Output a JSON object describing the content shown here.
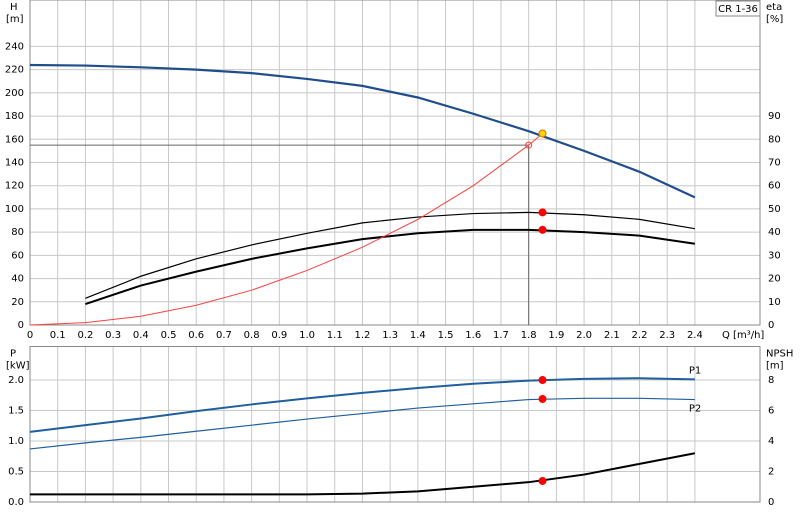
{
  "chart_data": [
    {
      "type": "line",
      "title": "CR 1-36",
      "ylabel": "H",
      "yunit": "[m]",
      "y2label": "eta",
      "y2unit": "[%]",
      "xlabel": "Q [m³/h]",
      "xlim": [
        0,
        2.635
      ],
      "ylim": [
        0,
        280
      ],
      "y2lim": [
        0,
        140
      ],
      "grid": true,
      "xticks": [
        0,
        0.1,
        0.2,
        0.3,
        0.4,
        0.5,
        0.6,
        0.7,
        0.8,
        0.9,
        {
          "value": 1,
          "label": "1.0"
        },
        1.1,
        1.2,
        1.3,
        1.4,
        1.5,
        1.6,
        1.7,
        1.8,
        1.9,
        {
          "value": 2,
          "label": "2.0"
        },
        2.1,
        2.2,
        2.3,
        2.4
      ],
      "yticks": [
        0,
        20,
        40,
        60,
        80,
        100,
        120,
        140,
        160,
        180,
        200,
        220,
        240
      ],
      "y2ticks": [
        0,
        10,
        20,
        30,
        40,
        50,
        60,
        70,
        80,
        90
      ],
      "series": [
        {
          "color": "#1f4e8c",
          "width": 2.2,
          "x": [
            0,
            0.2,
            0.4,
            0.6,
            0.8,
            1.0,
            1.2,
            1.4,
            1.6,
            1.8,
            2.0,
            2.2,
            2.4
          ],
          "values": [
            224,
            223.5,
            222,
            220,
            217,
            212,
            206,
            196,
            182,
            167,
            150,
            132,
            110
          ]
        },
        {
          "color": "#000000",
          "width": 1.2,
          "axis": "y2",
          "x": [
            0.2,
            0.4,
            0.6,
            0.8,
            1.0,
            1.2,
            1.4,
            1.6,
            1.8,
            2.0,
            2.2,
            2.4
          ],
          "values": [
            11.5,
            21,
            28.5,
            34.5,
            39.5,
            44,
            46.5,
            48,
            48.5,
            47.5,
            45.5,
            41.5
          ]
        },
        {
          "color": "#000000",
          "width": 2,
          "axis": "y2",
          "x": [
            0.2,
            0.4,
            0.6,
            0.8,
            1.0,
            1.2,
            1.4,
            1.6,
            1.8,
            2.0,
            2.2,
            2.4
          ],
          "values": [
            9,
            17,
            23,
            28.5,
            33,
            37,
            39.5,
            41,
            41,
            40,
            38.5,
            35
          ]
        },
        {
          "color": "#ff4040",
          "width": 1,
          "x": [
            0,
            0.2,
            0.4,
            0.6,
            0.8,
            1.0,
            1.2,
            1.4,
            1.6,
            1.8,
            1.85
          ],
          "values": [
            0,
            2,
            7.5,
            17,
            30,
            47,
            67,
            91,
            120,
            155,
            165
          ]
        }
      ],
      "duty_point": {
        "x": 1.8,
        "y": 155
      },
      "markers": [
        {
          "x": 1.85,
          "y": 165,
          "color": "#ffd700"
        },
        {
          "x": 1.85,
          "y": 48.5,
          "axis": "y2",
          "color": "#ff0000"
        },
        {
          "x": 1.85,
          "y": 41,
          "axis": "y2",
          "color": "#ff0000"
        }
      ]
    },
    {
      "type": "line",
      "ylabel": "P",
      "yunit": "[kW]",
      "y2label": "NPSH",
      "y2unit": "[m]",
      "xlim": [
        0,
        2.635
      ],
      "ylim": [
        0,
        2.55
      ],
      "y2lim": [
        0,
        10.2
      ],
      "grid": true,
      "yticks": [
        {
          "value": 0,
          "label": "0.0"
        },
        0.5,
        {
          "value": 1,
          "label": "1.0"
        },
        1.5,
        {
          "value": 2,
          "label": "2.0"
        }
      ],
      "y2ticks": [
        0,
        2,
        4,
        6,
        8
      ],
      "series": [
        {
          "name": "P1",
          "color": "#1f5fa0",
          "width": 2,
          "x": [
            0,
            0.2,
            0.4,
            0.6,
            0.8,
            1.0,
            1.2,
            1.4,
            1.6,
            1.8,
            2.0,
            2.2,
            2.4
          ],
          "values": [
            1.15,
            1.26,
            1.37,
            1.49,
            1.6,
            1.7,
            1.79,
            1.87,
            1.94,
            1.99,
            2.02,
            2.03,
            2.01
          ]
        },
        {
          "name": "P2",
          "color": "#1f5fa0",
          "width": 1.2,
          "x": [
            0,
            0.2,
            0.4,
            0.6,
            0.8,
            1.0,
            1.2,
            1.4,
            1.6,
            1.8,
            2.0,
            2.2,
            2.4
          ],
          "values": [
            0.87,
            0.97,
            1.06,
            1.16,
            1.26,
            1.36,
            1.45,
            1.54,
            1.61,
            1.68,
            1.7,
            1.7,
            1.68
          ]
        },
        {
          "color": "#000000",
          "width": 2,
          "axis": "y2",
          "x": [
            0,
            0.2,
            0.4,
            0.6,
            0.8,
            1.0,
            1.2,
            1.4,
            1.6,
            1.8,
            2.0,
            2.2,
            2.4
          ],
          "values": [
            0.5,
            0.5,
            0.5,
            0.5,
            0.5,
            0.5,
            0.55,
            0.7,
            1.0,
            1.3,
            1.8,
            2.5,
            3.2
          ]
        }
      ],
      "markers": [
        {
          "x": 1.85,
          "y": 2.0,
          "color": "#ff0000"
        },
        {
          "x": 1.85,
          "y": 1.69,
          "color": "#ff0000"
        },
        {
          "x": 1.85,
          "y": 1.38,
          "axis": "y2",
          "color": "#ff0000"
        }
      ]
    }
  ]
}
